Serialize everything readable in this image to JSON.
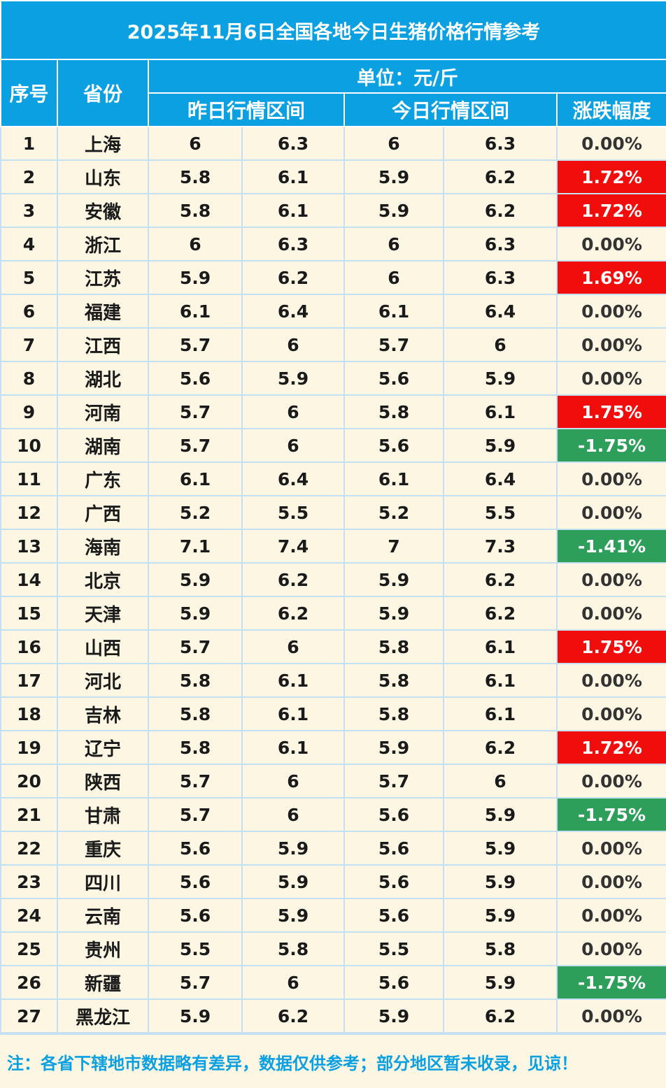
{
  "title": "2025年11月6日全国各地今日生猪价格行情参考",
  "headers": {
    "index": "序号",
    "province": "省份",
    "unit": "单位：元/斤",
    "yesterday": "昨日行情区间",
    "today": "今日行情区间",
    "change": "涨跌幅度"
  },
  "colors": {
    "header_bg": "#0aa0e2",
    "row_bg": "#fdf6e3",
    "up": "#f20d0d",
    "down": "#2e9e5b",
    "grid": "#c6dff3"
  },
  "rows": [
    {
      "no": "1",
      "province": "上海",
      "y_low": "6",
      "y_high": "6.3",
      "t_low": "6",
      "t_high": "6.3",
      "change": "0.00%",
      "trend": "flat"
    },
    {
      "no": "2",
      "province": "山东",
      "y_low": "5.8",
      "y_high": "6.1",
      "t_low": "5.9",
      "t_high": "6.2",
      "change": "1.72%",
      "trend": "up"
    },
    {
      "no": "3",
      "province": "安徽",
      "y_low": "5.8",
      "y_high": "6.1",
      "t_low": "5.9",
      "t_high": "6.2",
      "change": "1.72%",
      "trend": "up"
    },
    {
      "no": "4",
      "province": "浙江",
      "y_low": "6",
      "y_high": "6.3",
      "t_low": "6",
      "t_high": "6.3",
      "change": "0.00%",
      "trend": "flat"
    },
    {
      "no": "5",
      "province": "江苏",
      "y_low": "5.9",
      "y_high": "6.2",
      "t_low": "6",
      "t_high": "6.3",
      "change": "1.69%",
      "trend": "up"
    },
    {
      "no": "6",
      "province": "福建",
      "y_low": "6.1",
      "y_high": "6.4",
      "t_low": "6.1",
      "t_high": "6.4",
      "change": "0.00%",
      "trend": "flat"
    },
    {
      "no": "7",
      "province": "江西",
      "y_low": "5.7",
      "y_high": "6",
      "t_low": "5.7",
      "t_high": "6",
      "change": "0.00%",
      "trend": "flat"
    },
    {
      "no": "8",
      "province": "湖北",
      "y_low": "5.6",
      "y_high": "5.9",
      "t_low": "5.6",
      "t_high": "5.9",
      "change": "0.00%",
      "trend": "flat"
    },
    {
      "no": "9",
      "province": "河南",
      "y_low": "5.7",
      "y_high": "6",
      "t_low": "5.8",
      "t_high": "6.1",
      "change": "1.75%",
      "trend": "up"
    },
    {
      "no": "10",
      "province": "湖南",
      "y_low": "5.7",
      "y_high": "6",
      "t_low": "5.6",
      "t_high": "5.9",
      "change": "-1.75%",
      "trend": "down"
    },
    {
      "no": "11",
      "province": "广东",
      "y_low": "6.1",
      "y_high": "6.4",
      "t_low": "6.1",
      "t_high": "6.4",
      "change": "0.00%",
      "trend": "flat"
    },
    {
      "no": "12",
      "province": "广西",
      "y_low": "5.2",
      "y_high": "5.5",
      "t_low": "5.2",
      "t_high": "5.5",
      "change": "0.00%",
      "trend": "flat"
    },
    {
      "no": "13",
      "province": "海南",
      "y_low": "7.1",
      "y_high": "7.4",
      "t_low": "7",
      "t_high": "7.3",
      "change": "-1.41%",
      "trend": "down"
    },
    {
      "no": "14",
      "province": "北京",
      "y_low": "5.9",
      "y_high": "6.2",
      "t_low": "5.9",
      "t_high": "6.2",
      "change": "0.00%",
      "trend": "flat"
    },
    {
      "no": "15",
      "province": "天津",
      "y_low": "5.9",
      "y_high": "6.2",
      "t_low": "5.9",
      "t_high": "6.2",
      "change": "0.00%",
      "trend": "flat"
    },
    {
      "no": "16",
      "province": "山西",
      "y_low": "5.7",
      "y_high": "6",
      "t_low": "5.8",
      "t_high": "6.1",
      "change": "1.75%",
      "trend": "up"
    },
    {
      "no": "17",
      "province": "河北",
      "y_low": "5.8",
      "y_high": "6.1",
      "t_low": "5.8",
      "t_high": "6.1",
      "change": "0.00%",
      "trend": "flat"
    },
    {
      "no": "18",
      "province": "吉林",
      "y_low": "5.8",
      "y_high": "6.1",
      "t_low": "5.8",
      "t_high": "6.1",
      "change": "0.00%",
      "trend": "flat"
    },
    {
      "no": "19",
      "province": "辽宁",
      "y_low": "5.8",
      "y_high": "6.1",
      "t_low": "5.9",
      "t_high": "6.2",
      "change": "1.72%",
      "trend": "up"
    },
    {
      "no": "20",
      "province": "陕西",
      "y_low": "5.7",
      "y_high": "6",
      "t_low": "5.7",
      "t_high": "6",
      "change": "0.00%",
      "trend": "flat"
    },
    {
      "no": "21",
      "province": "甘肃",
      "y_low": "5.7",
      "y_high": "6",
      "t_low": "5.6",
      "t_high": "5.9",
      "change": "-1.75%",
      "trend": "down"
    },
    {
      "no": "22",
      "province": "重庆",
      "y_low": "5.6",
      "y_high": "5.9",
      "t_low": "5.6",
      "t_high": "5.9",
      "change": "0.00%",
      "trend": "flat"
    },
    {
      "no": "23",
      "province": "四川",
      "y_low": "5.6",
      "y_high": "5.9",
      "t_low": "5.6",
      "t_high": "5.9",
      "change": "0.00%",
      "trend": "flat"
    },
    {
      "no": "24",
      "province": "云南",
      "y_low": "5.6",
      "y_high": "5.9",
      "t_low": "5.6",
      "t_high": "5.9",
      "change": "0.00%",
      "trend": "flat"
    },
    {
      "no": "25",
      "province": "贵州",
      "y_low": "5.5",
      "y_high": "5.8",
      "t_low": "5.5",
      "t_high": "5.8",
      "change": "0.00%",
      "trend": "flat"
    },
    {
      "no": "26",
      "province": "新疆",
      "y_low": "5.7",
      "y_high": "6",
      "t_low": "5.6",
      "t_high": "5.9",
      "change": "-1.75%",
      "trend": "down"
    },
    {
      "no": "27",
      "province": "黑龙江",
      "y_low": "5.9",
      "y_high": "6.2",
      "t_low": "5.9",
      "t_high": "6.2",
      "change": "0.00%",
      "trend": "flat"
    }
  ],
  "note": "注：各省下辖地市数据略有差异，数据仅供参考；部分地区暂未收录，见谅！"
}
